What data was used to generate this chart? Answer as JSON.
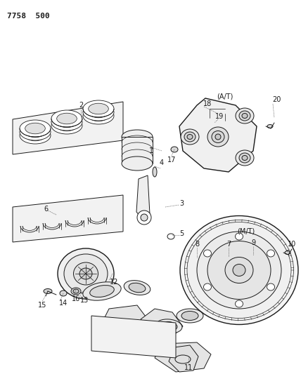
{
  "title": "7758  500",
  "background_color": "#ffffff",
  "line_color": "#1a1a1a",
  "fig_width": 4.28,
  "fig_height": 5.33,
  "dpi": 100
}
